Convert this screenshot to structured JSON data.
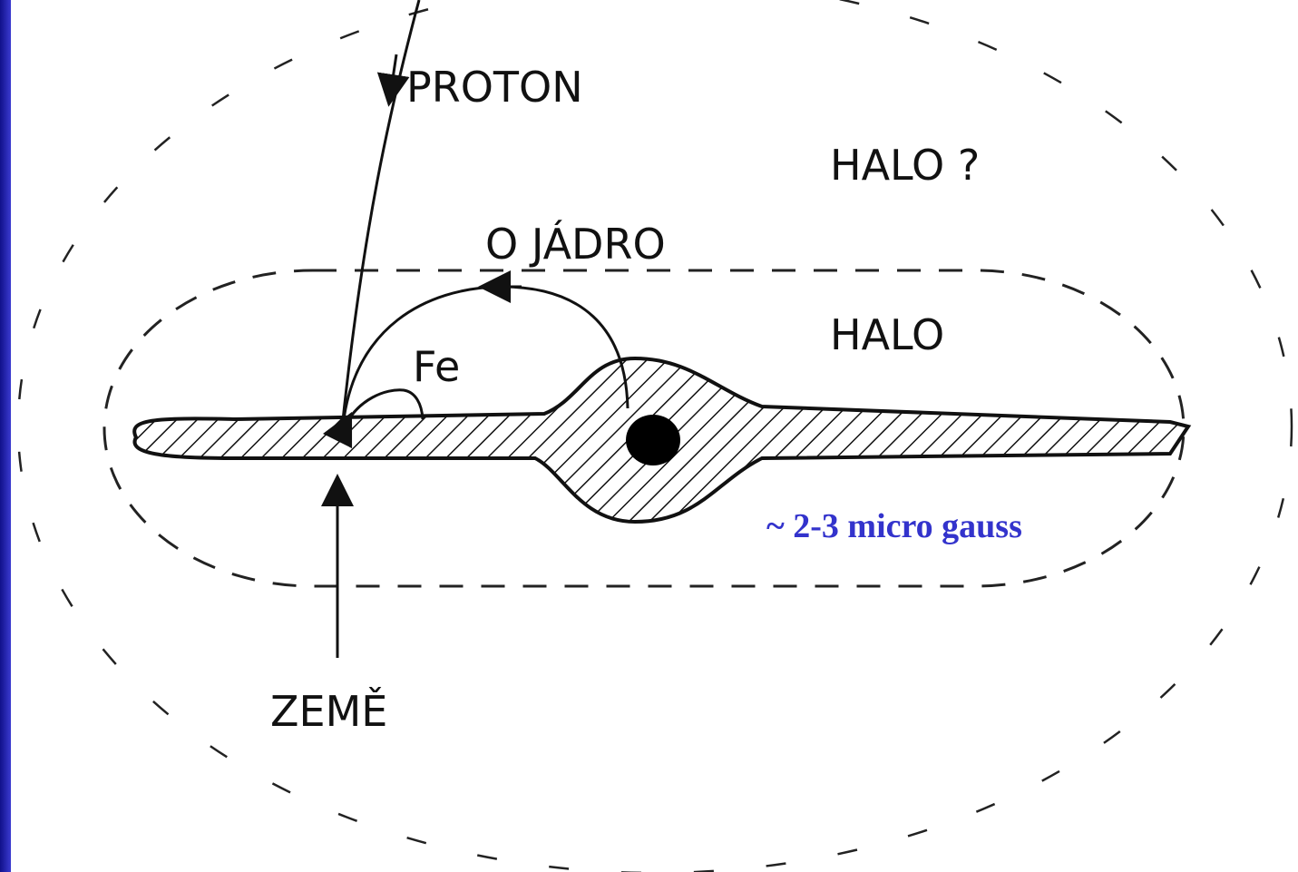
{
  "labels": {
    "proton": "PROTON",
    "halo_outer": "HALO ?",
    "nucleus": "O JÁDRO",
    "halo_inner": "HALO",
    "fe": "Fe",
    "earth": "ZEMĚ",
    "field": "~ 2-3 micro gauss"
  }
}
